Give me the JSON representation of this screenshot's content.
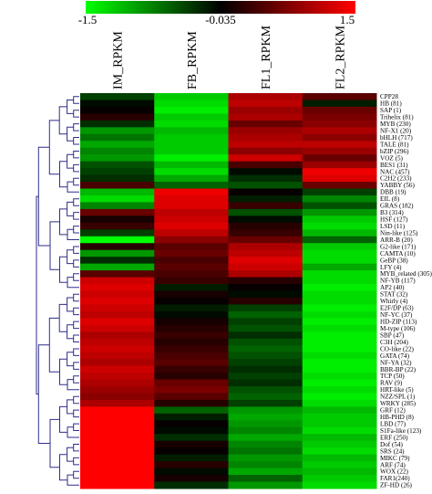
{
  "chart_data": {
    "type": "heatmap",
    "color_scale": {
      "min": -1.5,
      "mid": -0.035,
      "max": 1.5,
      "tick_labels": [
        "-1.5",
        "-0.035",
        "1.5"
      ],
      "colors": {
        "low": "#00ff00",
        "mid": "#000000",
        "high": "#ff0000"
      }
    },
    "columns": [
      "IM_RPKM",
      "FB_RPKM",
      "FL1_RPKM",
      "FL2_RPKM"
    ],
    "rows": [
      {
        "label": "CPP28",
        "values": [
          -0.4,
          -1.2,
          1.0,
          0.5
        ]
      },
      {
        "label": "HB (81)",
        "values": [
          -0.1,
          -1.3,
          1.1,
          -0.2
        ]
      },
      {
        "label": "SAP (1)",
        "values": [
          0.0,
          -1.4,
          0.9,
          0.6
        ]
      },
      {
        "label": "Trihelix (81)",
        "values": [
          0.2,
          -1.2,
          1.0,
          0.7
        ]
      },
      {
        "label": "MYB (230)",
        "values": [
          -0.3,
          -1.3,
          0.6,
          0.8
        ]
      },
      {
        "label": "NF-X1 (20)",
        "values": [
          -0.9,
          -1.1,
          0.9,
          1.0
        ]
      },
      {
        "label": "bHLH (717)",
        "values": [
          -0.7,
          -1.2,
          1.0,
          0.8
        ]
      },
      {
        "label": "TALE (81)",
        "values": [
          -1.0,
          -1.2,
          1.1,
          1.1
        ]
      },
      {
        "label": "bZIP (296)",
        "values": [
          -0.8,
          -1.2,
          0.8,
          0.9
        ]
      },
      {
        "label": "VOZ (5)",
        "values": [
          -0.9,
          -1.4,
          1.2,
          0.6
        ]
      },
      {
        "label": "BES1 (31)",
        "values": [
          -0.5,
          -1.1,
          0.4,
          0.9
        ]
      },
      {
        "label": "NAC (457)",
        "values": [
          -0.4,
          -1.3,
          -0.1,
          1.4
        ]
      },
      {
        "label": "C2H2 (233)",
        "values": [
          -0.3,
          -1.0,
          -0.3,
          1.3
        ]
      },
      {
        "label": "YABBY (56)",
        "values": [
          0.4,
          -0.6,
          -0.5,
          0.6
        ]
      },
      {
        "label": "DBB (19)",
        "values": [
          -1.1,
          1.4,
          0.0,
          -0.4
        ]
      },
      {
        "label": "EIL (8)",
        "values": [
          -1.3,
          1.3,
          -0.2,
          -0.8
        ]
      },
      {
        "label": "GRAS (182)",
        "values": [
          -0.8,
          1.3,
          0.3,
          -0.5
        ]
      },
      {
        "label": "B3 (314)",
        "values": [
          0.6,
          1.1,
          -0.5,
          -0.9
        ]
      },
      {
        "label": "HSF (127)",
        "values": [
          0.1,
          1.2,
          -0.1,
          -1.2
        ]
      },
      {
        "label": "LSD (11)",
        "values": [
          0.3,
          1.3,
          0.2,
          -1.3
        ]
      },
      {
        "label": "Nin-like (125)",
        "values": [
          -0.4,
          1.1,
          0.3,
          -1.1
        ]
      },
      {
        "label": "ARR-B (20)",
        "values": [
          -1.5,
          0.8,
          0.6,
          -0.6
        ]
      },
      {
        "label": "G2-like (171)",
        "values": [
          0.2,
          0.5,
          1.0,
          -1.2
        ]
      },
      {
        "label": "CAMTA (10)",
        "values": [
          -0.9,
          0.6,
          1.1,
          -1.3
        ]
      },
      {
        "label": "GeBP (38)",
        "values": [
          -0.3,
          0.4,
          1.3,
          -1.3
        ]
      },
      {
        "label": "LFY (4)",
        "values": [
          -1.0,
          0.5,
          1.2,
          -1.0
        ]
      },
      {
        "label": "MYB_related (305)",
        "values": [
          0.5,
          0.4,
          1.0,
          -1.3
        ]
      },
      {
        "label": "NF-YB (117)",
        "values": [
          1.2,
          0.3,
          0.2,
          -1.3
        ]
      },
      {
        "label": "AP2 (40)",
        "values": [
          1.3,
          -0.2,
          0.0,
          -1.4
        ]
      },
      {
        "label": "STAT (32)",
        "values": [
          1.2,
          0.1,
          -0.1,
          -1.3
        ]
      },
      {
        "label": "Whirly (4)",
        "values": [
          1.3,
          0.0,
          0.2,
          -1.3
        ]
      },
      {
        "label": "E2F/DP (63)",
        "values": [
          1.2,
          -0.2,
          -0.4,
          -1.4
        ]
      },
      {
        "label": "NF-YC (37)",
        "values": [
          1.1,
          -0.1,
          -0.6,
          -1.3
        ]
      },
      {
        "label": "HD-ZIP (113)",
        "values": [
          1.3,
          0.1,
          -0.4,
          -1.4
        ]
      },
      {
        "label": "M-type (106)",
        "values": [
          1.2,
          0.2,
          -0.5,
          -1.3
        ]
      },
      {
        "label": "SBP (47)",
        "values": [
          1.0,
          0.3,
          -0.3,
          -1.4
        ]
      },
      {
        "label": "C3H (204)",
        "values": [
          1.1,
          0.2,
          -0.5,
          -1.4
        ]
      },
      {
        "label": "CO-like (22)",
        "values": [
          1.2,
          0.3,
          -0.6,
          -1.4
        ]
      },
      {
        "label": "GATA (74)",
        "values": [
          1.1,
          0.4,
          -0.5,
          -1.3
        ]
      },
      {
        "label": "NF-YA (32)",
        "values": [
          1.0,
          0.5,
          -0.4,
          -1.4
        ]
      },
      {
        "label": "BBR-BP (22)",
        "values": [
          1.2,
          0.3,
          -0.3,
          -1.4
        ]
      },
      {
        "label": "TCP (50)",
        "values": [
          1.1,
          0.2,
          -0.4,
          -1.3
        ]
      },
      {
        "label": "RAV (9)",
        "values": [
          1.0,
          0.6,
          -0.3,
          -1.4
        ]
      },
      {
        "label": "HRT-like (5)",
        "values": [
          0.9,
          0.7,
          -0.5,
          -1.3
        ]
      },
      {
        "label": "NZZ/SPL (1)",
        "values": [
          0.8,
          0.5,
          -0.6,
          -1.4
        ]
      },
      {
        "label": "WRKY (285)",
        "values": [
          1.0,
          0.2,
          -0.4,
          -1.3
        ]
      },
      {
        "label": "GRF (12)",
        "values": [
          1.5,
          -0.6,
          -0.9,
          -1.1
        ]
      },
      {
        "label": "HB-PHD (8)",
        "values": [
          1.5,
          -0.2,
          -1.0,
          -1.2
        ]
      },
      {
        "label": "LBD (77)",
        "values": [
          1.5,
          0.0,
          -0.9,
          -1.2
        ]
      },
      {
        "label": "S1Fa-like (123)",
        "values": [
          1.5,
          -0.1,
          -0.8,
          -1.3
        ]
      },
      {
        "label": "ERF (250)",
        "values": [
          1.5,
          -0.3,
          -1.0,
          -1.1
        ]
      },
      {
        "label": "Dof (54)",
        "values": [
          1.5,
          0.1,
          -0.8,
          -1.2
        ]
      },
      {
        "label": "SRS (24)",
        "values": [
          1.5,
          0.0,
          -0.7,
          -1.3
        ]
      },
      {
        "label": "MIKC (79)",
        "values": [
          1.5,
          -0.2,
          -0.9,
          -1.1
        ]
      },
      {
        "label": "ARF (74)",
        "values": [
          1.5,
          0.2,
          -0.8,
          -1.2
        ]
      },
      {
        "label": "WOX (22)",
        "values": [
          1.5,
          -0.1,
          -1.0,
          -1.1
        ]
      },
      {
        "label": "FAR1(240)",
        "values": [
          1.5,
          0.1,
          -0.6,
          -1.2
        ]
      },
      {
        "label": "ZF-HD (26)",
        "values": [
          1.5,
          -0.3,
          -0.9,
          -1.3
        ]
      }
    ],
    "grid": false,
    "legend": "top"
  }
}
